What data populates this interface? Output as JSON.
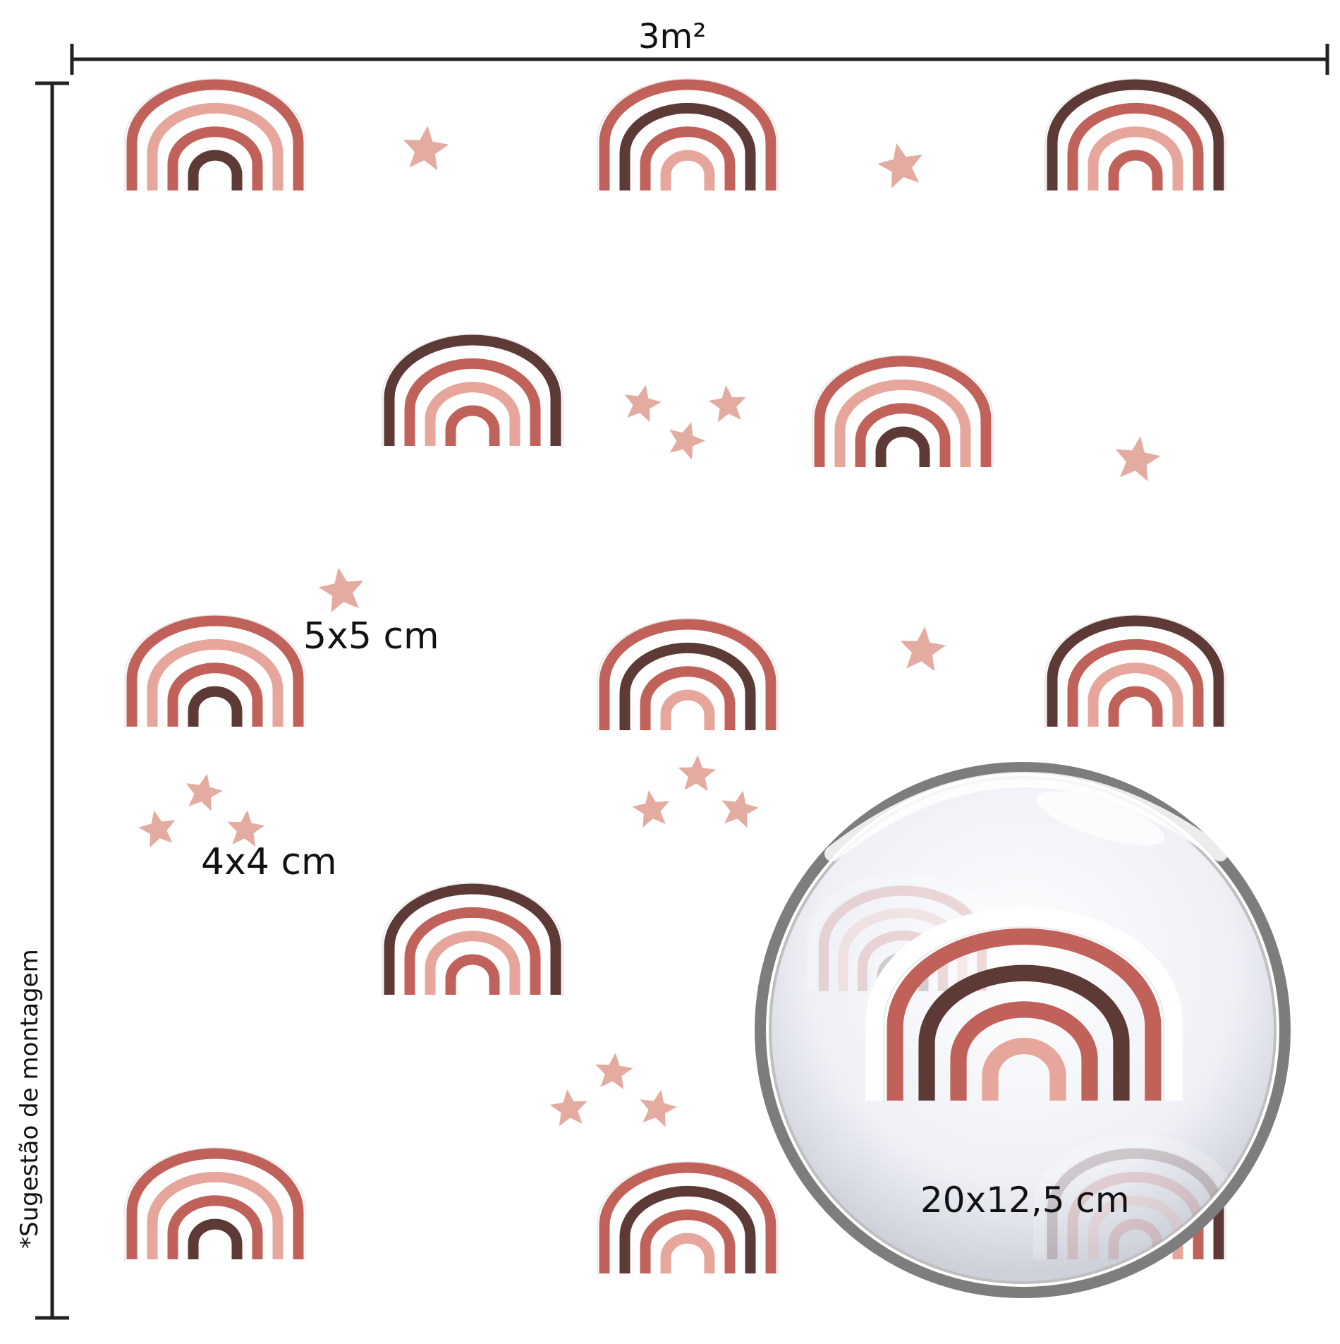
{
  "dimensions": {
    "width_label": "3m²",
    "mounting_note": "*Sugestão de montagem"
  },
  "sizes": {
    "star_large": "5x5 cm",
    "star_small": "4x4 cm",
    "rainbow": "20x12,5 cm"
  },
  "colors": {
    "terracotta": "#c1625a",
    "blush": "#e7a69b",
    "dark_brown": "#5e3a37",
    "star_pink": "#e4aba1",
    "dimension_line": "#222222",
    "lens_rim": "#8a8a8a"
  },
  "icons": [
    "rainbow-sticker-icon",
    "star-sticker-icon",
    "magnifier-lens-icon"
  ]
}
